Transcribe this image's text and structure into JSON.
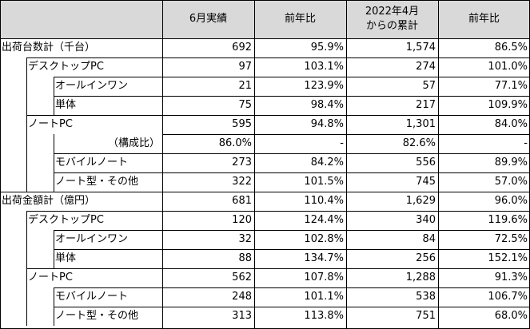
{
  "headers": {
    "col1": "6月実績",
    "col2": "前年比",
    "col3_line1": "2022年4月",
    "col3_line2": "からの累計",
    "col4": "前年比"
  },
  "rows": [
    {
      "label": "出荷台数計（千台）",
      "level": 0,
      "v": [
        "692",
        "95.9%",
        "1,574",
        "86.5%"
      ]
    },
    {
      "label": "デスクトップPC",
      "level": 1,
      "v": [
        "97",
        "103.1%",
        "274",
        "101.0%"
      ]
    },
    {
      "label": "オールインワン",
      "level": 2,
      "v": [
        "21",
        "123.9%",
        "57",
        "77.1%"
      ]
    },
    {
      "label": "単体",
      "level": 2,
      "v": [
        "75",
        "98.4%",
        "217",
        "109.9%"
      ]
    },
    {
      "label": "ノートPC",
      "level": 1,
      "v": [
        "595",
        "94.8%",
        "1,301",
        "84.0%"
      ]
    },
    {
      "label": "（構成比）",
      "level": "ratio",
      "v": [
        "86.0%",
        "-",
        "82.6%",
        "-"
      ]
    },
    {
      "label": "モバイルノート",
      "level": 2,
      "v": [
        "273",
        "84.2%",
        "556",
        "89.9%"
      ]
    },
    {
      "label": "ノート型・その他",
      "level": 2,
      "v": [
        "322",
        "101.5%",
        "745",
        "57.0%"
      ]
    },
    {
      "label": "出荷金額計（億円）",
      "level": 0,
      "v": [
        "681",
        "110.4%",
        "1,629",
        "96.0%"
      ]
    },
    {
      "label": "デスクトップPC",
      "level": 1,
      "v": [
        "120",
        "124.4%",
        "340",
        "119.6%"
      ]
    },
    {
      "label": "オールインワン",
      "level": 2,
      "v": [
        "32",
        "102.8%",
        "84",
        "72.5%"
      ]
    },
    {
      "label": "単体",
      "level": 2,
      "v": [
        "88",
        "134.7%",
        "256",
        "152.1%"
      ]
    },
    {
      "label": "ノートPC",
      "level": 1,
      "v": [
        "562",
        "107.8%",
        "1,288",
        "91.3%"
      ]
    },
    {
      "label": "モバイルノート",
      "level": 2,
      "v": [
        "248",
        "101.1%",
        "538",
        "106.7%"
      ]
    },
    {
      "label": "ノート型・その他",
      "level": 2,
      "v": [
        "313",
        "113.8%",
        "751",
        "68.0%"
      ]
    }
  ]
}
